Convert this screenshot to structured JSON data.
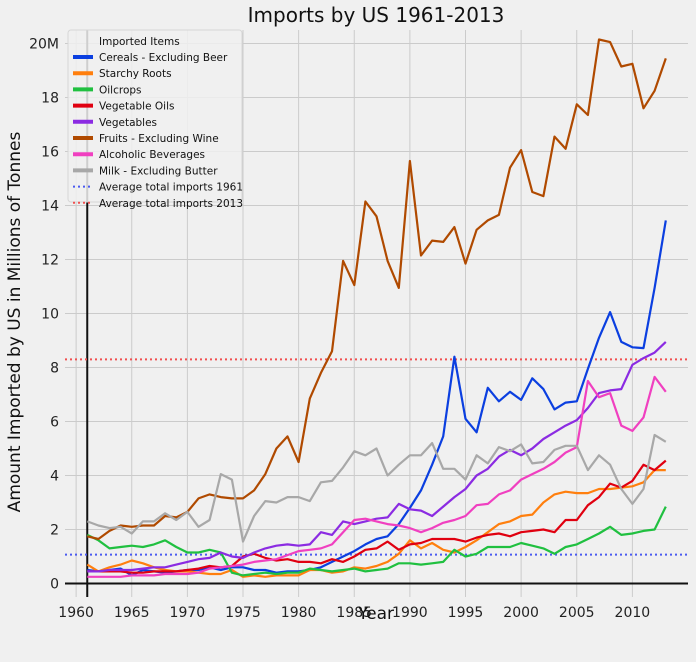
{
  "chart_data": {
    "type": "line",
    "title": "Imports by US 1961-2013",
    "xlabel": "Year",
    "ylabel": "Amount Imported by US in Millions of Tonnes",
    "xlim": [
      1959,
      2015
    ],
    "ylim": [
      -0.5,
      20.5
    ],
    "x_ticks": [
      1960,
      1965,
      1970,
      1975,
      1980,
      1985,
      1990,
      1995,
      2000,
      2005,
      2010
    ],
    "y_ticks": [
      0,
      2,
      4,
      6,
      8,
      10,
      12,
      14,
      16,
      18,
      20
    ],
    "y_tick_labels": [
      "0",
      "2",
      "4",
      "6",
      "8",
      "10",
      "12",
      "14",
      "16",
      "18",
      "20M"
    ],
    "grid": true,
    "legend": {
      "title": "Imported Items",
      "placement": "top-left"
    },
    "x": [
      1961,
      1962,
      1963,
      1964,
      1965,
      1966,
      1967,
      1968,
      1969,
      1970,
      1971,
      1972,
      1973,
      1974,
      1975,
      1976,
      1977,
      1978,
      1979,
      1980,
      1981,
      1982,
      1983,
      1984,
      1985,
      1986,
      1987,
      1988,
      1989,
      1990,
      1991,
      1992,
      1993,
      1994,
      1995,
      1996,
      1997,
      1998,
      1999,
      2000,
      2001,
      2002,
      2003,
      2004,
      2005,
      2006,
      2007,
      2008,
      2009,
      2010,
      2011,
      2012,
      2013
    ],
    "series": [
      {
        "name": "Cereals - Excluding Beer",
        "color": "#0b3fe0",
        "values": [
          0.5,
          0.45,
          0.5,
          0.55,
          0.3,
          0.5,
          0.45,
          0.4,
          0.45,
          0.5,
          0.5,
          0.6,
          0.5,
          0.6,
          0.6,
          0.5,
          0.5,
          0.4,
          0.45,
          0.45,
          0.5,
          0.6,
          0.8,
          1.0,
          1.2,
          1.45,
          1.65,
          1.75,
          2.2,
          2.8,
          3.45,
          4.4,
          5.45,
          8.4,
          6.1,
          5.6,
          7.25,
          6.75,
          7.1,
          6.8,
          7.6,
          7.2,
          6.45,
          6.7,
          6.75,
          7.95,
          9.1,
          10.05,
          8.95,
          8.75,
          8.72,
          10.95,
          13.45
        ]
      },
      {
        "name": "Starchy Roots",
        "color": "#ff7f0e",
        "values": [
          0.7,
          0.45,
          0.6,
          0.7,
          0.85,
          0.75,
          0.6,
          0.5,
          0.45,
          0.45,
          0.4,
          0.35,
          0.35,
          0.5,
          0.25,
          0.3,
          0.25,
          0.3,
          0.3,
          0.3,
          0.5,
          0.5,
          0.4,
          0.45,
          0.6,
          0.55,
          0.65,
          0.8,
          1.1,
          1.6,
          1.3,
          1.5,
          1.25,
          1.15,
          1.35,
          1.6,
          1.9,
          2.2,
          2.3,
          2.5,
          2.55,
          3.0,
          3.3,
          3.4,
          3.35,
          3.35,
          3.5,
          3.5,
          3.55,
          3.6,
          3.75,
          4.2,
          4.2
        ]
      },
      {
        "name": "Oilcrops",
        "color": "#20c040",
        "values": [
          1.8,
          1.6,
          1.3,
          1.35,
          1.4,
          1.35,
          1.45,
          1.6,
          1.35,
          1.15,
          1.15,
          1.25,
          1.15,
          0.4,
          0.3,
          0.35,
          0.4,
          0.35,
          0.4,
          0.4,
          0.55,
          0.5,
          0.45,
          0.5,
          0.55,
          0.45,
          0.5,
          0.55,
          0.75,
          0.75,
          0.7,
          0.75,
          0.8,
          1.25,
          1.0,
          1.1,
          1.35,
          1.35,
          1.35,
          1.5,
          1.4,
          1.3,
          1.1,
          1.35,
          1.45,
          1.65,
          1.85,
          2.1,
          1.8,
          1.85,
          1.95,
          2.0,
          2.85
        ]
      },
      {
        "name": "Vegetable Oils",
        "color": "#e00010",
        "values": [
          0.45,
          0.45,
          0.45,
          0.45,
          0.4,
          0.4,
          0.45,
          0.45,
          0.45,
          0.5,
          0.55,
          0.65,
          0.6,
          0.65,
          1.0,
          1.1,
          0.95,
          0.85,
          0.9,
          0.8,
          0.8,
          0.75,
          0.9,
          0.8,
          1.0,
          1.25,
          1.3,
          1.55,
          1.25,
          1.45,
          1.5,
          1.65,
          1.65,
          1.65,
          1.55,
          1.7,
          1.8,
          1.85,
          1.75,
          1.9,
          1.95,
          2.0,
          1.9,
          2.35,
          2.35,
          2.9,
          3.2,
          3.7,
          3.55,
          3.8,
          4.4,
          4.2,
          4.55
        ]
      },
      {
        "name": "Vegetables",
        "color": "#8b2be2",
        "values": [
          0.45,
          0.45,
          0.5,
          0.5,
          0.5,
          0.55,
          0.6,
          0.6,
          0.7,
          0.8,
          0.9,
          0.95,
          1.15,
          1.0,
          0.95,
          1.15,
          1.3,
          1.4,
          1.45,
          1.4,
          1.45,
          1.9,
          1.8,
          2.3,
          2.2,
          2.3,
          2.4,
          2.45,
          2.95,
          2.75,
          2.7,
          2.5,
          2.85,
          3.2,
          3.5,
          4.0,
          4.25,
          4.7,
          4.95,
          4.75,
          5.0,
          5.35,
          5.6,
          5.85,
          6.05,
          6.5,
          7.05,
          7.15,
          7.2,
          8.1,
          8.35,
          8.55,
          8.95
        ]
      },
      {
        "name": "Fruits - Excluding Wine",
        "color": "#b04a00",
        "values": [
          1.75,
          1.65,
          1.95,
          2.15,
          2.1,
          2.15,
          2.15,
          2.5,
          2.45,
          2.65,
          3.15,
          3.3,
          3.2,
          3.15,
          3.15,
          3.45,
          4.05,
          5.0,
          5.45,
          4.5,
          6.85,
          7.8,
          8.6,
          11.95,
          11.05,
          14.15,
          13.6,
          11.95,
          10.95,
          15.65,
          12.15,
          12.7,
          12.65,
          13.2,
          11.85,
          13.1,
          13.45,
          13.65,
          15.4,
          16.05,
          14.5,
          14.35,
          16.55,
          16.1,
          17.75,
          17.35,
          20.15,
          20.05,
          19.15,
          19.25,
          17.6,
          18.25,
          19.45
        ]
      },
      {
        "name": "Alcoholic Beverages",
        "color": "#f040c0",
        "values": [
          0.25,
          0.25,
          0.25,
          0.25,
          0.3,
          0.3,
          0.3,
          0.35,
          0.35,
          0.35,
          0.4,
          0.55,
          0.6,
          0.65,
          0.7,
          0.8,
          0.85,
          0.9,
          1.05,
          1.2,
          1.25,
          1.3,
          1.45,
          1.9,
          2.35,
          2.4,
          2.3,
          2.2,
          2.15,
          2.05,
          1.9,
          2.05,
          2.25,
          2.35,
          2.5,
          2.9,
          2.95,
          3.3,
          3.45,
          3.85,
          4.05,
          4.25,
          4.5,
          4.85,
          5.05,
          7.5,
          6.9,
          7.05,
          5.85,
          5.65,
          6.15,
          7.65,
          7.1
        ]
      },
      {
        "name": "Milk - Excluding Butter",
        "color": "#a8a8a8",
        "values": [
          2.3,
          2.15,
          2.05,
          2.1,
          1.85,
          2.3,
          2.3,
          2.6,
          2.35,
          2.65,
          2.1,
          2.35,
          4.05,
          3.85,
          1.55,
          2.5,
          3.05,
          3.0,
          3.2,
          3.2,
          3.05,
          3.75,
          3.8,
          4.3,
          4.9,
          4.75,
          5.0,
          4.0,
          4.4,
          4.75,
          4.75,
          5.2,
          4.25,
          4.25,
          3.85,
          4.75,
          4.45,
          5.05,
          4.9,
          5.15,
          4.45,
          4.5,
          4.95,
          5.1,
          5.1,
          4.2,
          4.75,
          4.4,
          3.5,
          2.95,
          3.5,
          5.5,
          5.25
        ]
      }
    ],
    "reference_lines": [
      {
        "name": "Average total imports 1961",
        "value": 1.07,
        "color": "#4a5af0",
        "style": "dotted"
      },
      {
        "name": "Average total imports 2013",
        "value": 8.3,
        "color": "#f05050",
        "style": "dotted"
      }
    ]
  }
}
